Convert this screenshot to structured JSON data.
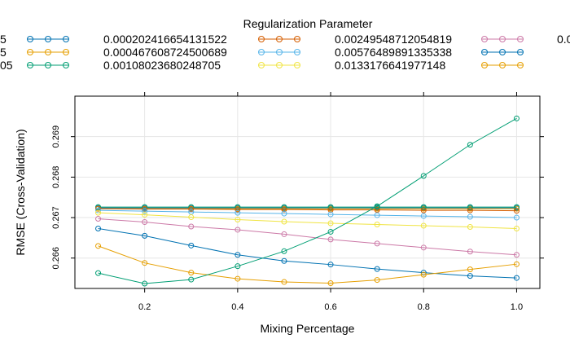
{
  "chart_data": {
    "type": "line",
    "title": "",
    "legend_title": "Regularization Parameter",
    "xlabel": "Mixing Percentage",
    "ylabel": "RMSE (Cross-Validation)",
    "xlim": [
      0.05,
      1.05
    ],
    "ylim": [
      0.26525,
      0.27
    ],
    "x_ticks": [
      "0.2",
      "0.4",
      "0.6",
      "0.8",
      "1.0"
    ],
    "y_ticks": [
      "0.266",
      "0.267",
      "0.268",
      "0.269"
    ],
    "grid": true,
    "legend_position": "top",
    "x": [
      0.1,
      0.2,
      0.3,
      0.4,
      0.5,
      0.6,
      0.7,
      0.8,
      0.9,
      1.0
    ],
    "series": [
      {
        "name": "",
        "color": "#0072B2",
        "legend_visible": "5",
        "values": [
          0.26724,
          0.26724,
          0.26724,
          0.26724,
          0.26724,
          0.26724,
          0.26724,
          0.26724,
          0.26724,
          0.26724
        ]
      },
      {
        "name": "",
        "color": "#E69F00",
        "legend_visible": "5",
        "values": [
          0.26722,
          0.26722,
          0.26722,
          0.26722,
          0.26722,
          0.26722,
          0.26722,
          0.26722,
          0.26722,
          0.26722
        ]
      },
      {
        "name": "",
        "color": "#009E73",
        "legend_visible": "05",
        "values": [
          0.26726,
          0.26726,
          0.26726,
          0.26726,
          0.26726,
          0.26726,
          0.26726,
          0.26726,
          0.26726,
          0.26726
        ]
      },
      {
        "name": "0.000202416654131522",
        "color": "#D55E00",
        "values": [
          0.26722,
          0.26721,
          0.26721,
          0.2672,
          0.2672,
          0.26719,
          0.26719,
          0.26718,
          0.26718,
          0.26717
        ]
      },
      {
        "name": "0.000467608724500689",
        "color": "#56B4E9",
        "values": [
          0.26718,
          0.26716,
          0.26714,
          0.26712,
          0.2671,
          0.26708,
          0.26706,
          0.26704,
          0.26702,
          0.267
        ]
      },
      {
        "name": "0.00108023680248705",
        "color": "#F0E442",
        "values": [
          0.26712,
          0.26707,
          0.26701,
          0.26695,
          0.2669,
          0.26686,
          0.26683,
          0.2668,
          0.26677,
          0.26673
        ]
      },
      {
        "name": "0.00249548712054819",
        "color": "#CC79A7",
        "values": [
          0.26697,
          0.26689,
          0.26678,
          0.2667,
          0.26659,
          0.26646,
          0.26636,
          0.26626,
          0.26616,
          0.26608
        ]
      },
      {
        "name": "0.00576489891335338",
        "color": "#0072B2",
        "values": [
          0.26673,
          0.26655,
          0.26631,
          0.26608,
          0.26593,
          0.26584,
          0.26573,
          0.26564,
          0.26556,
          0.26551
        ]
      },
      {
        "name": "0.0133176641977148",
        "color": "#E69F00",
        "values": [
          0.2663,
          0.26588,
          0.26564,
          0.26549,
          0.26541,
          0.26538,
          0.26546,
          0.26559,
          0.26572,
          0.26585
        ]
      },
      {
        "name": "",
        "color": "#009E73",
        "legend_visible": "0.0",
        "values": [
          0.26563,
          0.26537,
          0.26547,
          0.2658,
          0.26617,
          0.26665,
          0.26728,
          0.26803,
          0.2688,
          0.26945
        ]
      }
    ]
  }
}
